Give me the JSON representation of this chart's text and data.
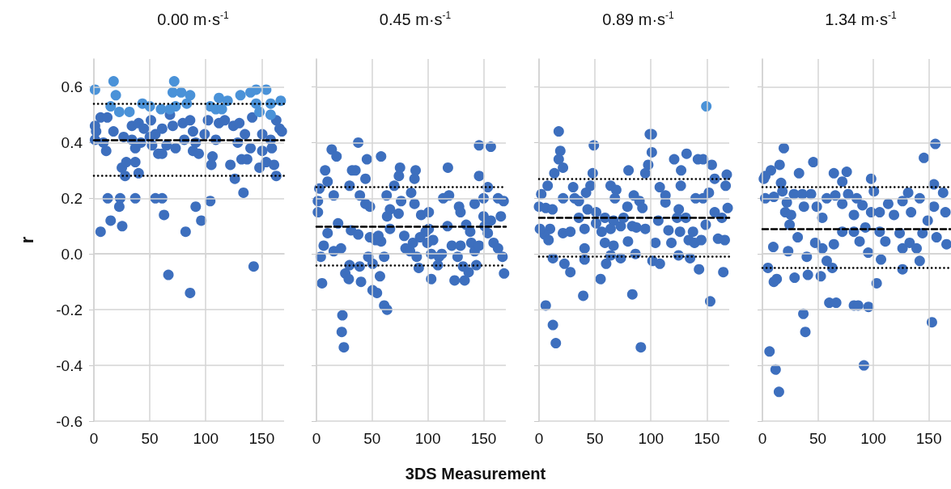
{
  "chart_data": [
    {
      "type": "scatter",
      "title": "0.00 m·s$^{-1}$",
      "ylabel": "r",
      "xlim": [
        0,
        170
      ],
      "xticks": [
        0,
        50,
        100,
        150
      ],
      "ylim": [
        -0.6,
        0.7
      ],
      "yticks": [
        -0.6,
        -0.4,
        -0.2,
        {
          "value": 0,
          "label": "0.0"
        },
        0.2,
        0.4,
        0.6
      ],
      "grid": true,
      "marker": "circle",
      "ref_lines": [
        {
          "axis": "y",
          "value": 0.41,
          "color": "#000000",
          "line_style": "dashed"
        },
        {
          "axis": "y",
          "value": 0.54,
          "color": "#000000",
          "line_style": "dotted"
        },
        {
          "axis": "y",
          "value": 0.28,
          "color": "#000000",
          "line_style": "dotted"
        }
      ],
      "series": [
        {
          "color": "#3d6fbe",
          "x": [
            1,
            2,
            1,
            6,
            12,
            17.5,
            8.5,
            11,
            26.6,
            25,
            27.9,
            29,
            34,
            34,
            37,
            37,
            40,
            40,
            44.7,
            42,
            50,
            51,
            52,
            55,
            57.6,
            61,
            61,
            65,
            68,
            70.5,
            73,
            79.5,
            80.8,
            86,
            88.6,
            88.6,
            91,
            93.7,
            99,
            102,
            106,
            105,
            109,
            111.8,
            117,
            124.7,
            130,
            128.6,
            122,
            126,
            135,
            132,
            137,
            140,
            141.5,
            150.5,
            150.5,
            148,
            154,
            161,
            159,
            163,
            163,
            166,
            168,
            158,
            12.4,
            6,
            15,
            23.5,
            22.7,
            25.3,
            37,
            55,
            61,
            62.7,
            82,
            91,
            96,
            104,
            133.7,
            66.6,
            86,
            142.8
          ],
          "values": [
            0.46,
            0.44,
            0.41,
            0.49,
            0.49,
            0.44,
            0.4,
            0.37,
            0.42,
            0.31,
            0.28,
            0.33,
            0.46,
            0.41,
            0.38,
            0.33,
            0.29,
            0.47,
            0.45,
            0.4,
            0.42,
            0.48,
            0.39,
            0.43,
            0.36,
            0.36,
            0.45,
            0.39,
            0.5,
            0.46,
            0.38,
            0.47,
            0.41,
            0.48,
            0.44,
            0.37,
            0.4,
            0.36,
            0.43,
            0.48,
            0.35,
            0.32,
            0.41,
            0.47,
            0.48,
            0.46,
            0.47,
            0.4,
            0.32,
            0.27,
            0.43,
            0.34,
            0.34,
            0.38,
            0.49,
            0.37,
            0.43,
            0.31,
            0.33,
            0.32,
            0.38,
            0.28,
            0.48,
            0.45,
            0.44,
            0.41,
            0.2,
            0.08,
            0.12,
            0.2,
            0.17,
            0.1,
            0.2,
            0.2,
            0.2,
            0.14,
            0.08,
            0.17,
            0.12,
            0.19,
            0.22,
            -0.075,
            -0.14,
            -0.045
          ]
        },
        {
          "color": "#4a92d8",
          "x": [
            1,
            17.6,
            19.6,
            15,
            22.7,
            31.8,
            43.4,
            50,
            60,
            68,
            71.8,
            70.5,
            78,
            86,
            83,
            73,
            109,
            114.4,
            111.8,
            119.5,
            131,
            140,
            145,
            154,
            145,
            148,
            158,
            158,
            167,
            104
          ],
          "values": [
            0.59,
            0.62,
            0.57,
            0.53,
            0.51,
            0.51,
            0.54,
            0.53,
            0.52,
            0.52,
            0.62,
            0.58,
            0.58,
            0.57,
            0.54,
            0.53,
            0.52,
            0.52,
            0.56,
            0.55,
            0.57,
            0.58,
            0.59,
            0.59,
            0.54,
            0.51,
            0.5,
            0.54,
            0.55,
            0.53
          ]
        }
      ]
    },
    {
      "type": "scatter",
      "title": "0.45 m·s$^{-1}$",
      "xlabel": "3DS Measurement",
      "xlim": [
        0,
        170
      ],
      "xticks": [
        0,
        50,
        100,
        150
      ],
      "ylim": [
        -0.6,
        0.7
      ],
      "yticks": [
        -0.6,
        -0.4,
        -0.2,
        0,
        0.2,
        0.4,
        0.6
      ],
      "grid": true,
      "marker": "circle",
      "tick_labels": "x",
      "ref_lines": [
        {
          "axis": "y",
          "value": 0.1,
          "color": "#000000",
          "line_style": "dashed"
        },
        {
          "axis": "y",
          "value": 0.24,
          "color": "#000000",
          "line_style": "dotted"
        },
        {
          "axis": "y",
          "value": -0.04,
          "color": "#000000",
          "line_style": "dotted"
        }
      ],
      "series": [
        {
          "color": "#3d6fbe",
          "x": [
            37.5,
            13.7,
            18,
            45.3,
            58,
            146,
            156.5,
            118,
            7.8,
            32,
            35,
            44,
            75,
            74,
            89,
            88,
            146,
            2.6,
            10,
            15.5,
            29.7,
            39,
            44,
            48,
            63,
            69.8,
            76,
            85,
            88,
            113.8,
            119,
            128,
            129.3,
            142,
            153.8,
            150,
            163,
            168,
            1.3,
            1.3,
            19.4,
            10,
            6.5,
            3.9,
            5,
            15.5,
            22,
            31,
            37.5,
            29.7,
            25.9,
            29,
            38.8,
            40,
            46.5,
            50.4,
            48,
            53,
            58,
            55.6,
            60.8,
            57,
            50.4,
            54.3,
            60.8,
            63.4,
            23.3,
            22.7,
            24.6,
            66,
            63.4,
            66,
            73.7,
            78.8,
            80,
            84,
            90,
            91.8,
            86.6,
            93,
            98,
            94,
            100.8,
            99.5,
            103,
            103,
            110,
            112.5,
            109,
            104.7,
            117.6,
            121.5,
            124,
            126.7,
            129.3,
            133,
            131.6,
            136.6,
            138,
            139,
            142,
            143.5,
            146,
            150,
            153.8,
            156.5,
            159,
            163,
            165.5,
            167,
            168.4,
            134.4,
            151,
            100.8
          ],
          "values": [
            0.4,
            0.375,
            0.35,
            0.34,
            0.35,
            0.39,
            0.385,
            0.31,
            0.3,
            0.3,
            0.3,
            0.27,
            0.31,
            0.28,
            0.3,
            0.27,
            0.28,
            0.235,
            0.26,
            0.21,
            0.245,
            0.21,
            0.18,
            0.17,
            0.21,
            0.245,
            0.19,
            0.22,
            0.18,
            0.2,
            0.21,
            0.17,
            0.15,
            0.18,
            0.24,
            0.2,
            0.2,
            0.19,
            0.19,
            0.15,
            0.11,
            0.075,
            0.03,
            -0.01,
            -0.105,
            0.01,
            0.02,
            0.085,
            0.07,
            -0.04,
            -0.07,
            -0.09,
            -0.045,
            -0.1,
            -0.01,
            -0.035,
            0.06,
            0.05,
            0.045,
            0.065,
            -0.01,
            -0.08,
            -0.13,
            -0.14,
            -0.185,
            -0.2,
            -0.22,
            -0.28,
            -0.335,
            0.09,
            0.135,
            0.16,
            0.145,
            0.065,
            0.02,
            0.01,
            -0.01,
            -0.05,
            0.04,
            0.06,
            0.08,
            0.14,
            0.15,
            0.04,
            0,
            -0.09,
            -0.01,
            0,
            -0.04,
            0.05,
            0.1,
            0.03,
            -0.095,
            -0.01,
            0.03,
            -0.095,
            -0.045,
            -0.065,
            0.08,
            0.04,
            0.01,
            -0.04,
            0.03,
            0.135,
            0.075,
            0.12,
            0.04,
            0.02,
            0.135,
            -0.01,
            -0.07,
            0.105,
            0.1,
            0.09
          ]
        }
      ]
    },
    {
      "type": "scatter",
      "title": "0.89 m·s$^{-1}$",
      "xlim": [
        0,
        170
      ],
      "xticks": [
        0,
        50,
        100,
        150
      ],
      "ylim": [
        -0.6,
        0.7
      ],
      "yticks": [
        -0.6,
        -0.4,
        -0.2,
        0,
        0.2,
        0.4,
        0.6
      ],
      "grid": true,
      "marker": "circle",
      "tick_labels": "x",
      "ref_lines": [
        {
          "axis": "y",
          "value": 0.13,
          "color": "#000000",
          "line_style": "dashed"
        },
        {
          "axis": "y",
          "value": 0.27,
          "color": "#000000",
          "line_style": "dotted"
        },
        {
          "axis": "y",
          "value": -0.01,
          "color": "#000000",
          "line_style": "dotted"
        }
      ],
      "series": [
        {
          "color": "#3d6fbe",
          "x": [
            17.6,
            99,
            100.8,
            49,
            19,
            100.8,
            17.6,
            21.4,
            13.7,
            120.8,
            131.9,
            142,
            146.7,
            154.4,
            127,
            80,
            97.6,
            95,
            48,
            46,
            157,
            167.8,
            166.8,
            7.7,
            2,
            0,
            6,
            12,
            21.5,
            30.5,
            31.8,
            35.6,
            42,
            64,
            69,
            67.8,
            79,
            84.7,
            89.8,
            92.4,
            107.9,
            113,
            113,
            124.9,
            126.7,
            140,
            146.6,
            151.8,
            157,
            168.6,
            163.4,
            9.8,
            5,
            0.8,
            8.5,
            21.4,
            28,
            35.6,
            40.7,
            43.4,
            51,
            51,
            58.9,
            56,
            58.9,
            66.6,
            64,
            66.6,
            73,
            75.6,
            79.5,
            83.3,
            87,
            95,
            104,
            106.6,
            115.7,
            118.3,
            123.4,
            126,
            131.2,
            133.8,
            137.6,
            139,
            149,
            145,
            160,
            166,
            12.4,
            22.7,
            28,
            40.7,
            40.7,
            55,
            60,
            64,
            73,
            86.2,
            101.4,
            108,
            124.7,
            135,
            143,
            164.7,
            39.5,
            83.4,
            6,
            12.4,
            15,
            91,
            153
          ],
          "values": [
            0.44,
            0.43,
            0.43,
            0.39,
            0.37,
            0.365,
            0.34,
            0.31,
            0.29,
            0.34,
            0.36,
            0.34,
            0.34,
            0.32,
            0.3,
            0.3,
            0.32,
            0.29,
            0.29,
            0.245,
            0.27,
            0.285,
            0.245,
            0.245,
            0.215,
            0.17,
            0.165,
            0.16,
            0.2,
            0.24,
            0.2,
            0.19,
            0.22,
            0.245,
            0.23,
            0.2,
            0.17,
            0.21,
            0.19,
            0.165,
            0.24,
            0.21,
            0.185,
            0.16,
            0.245,
            0.2,
            0.2,
            0.22,
            0.15,
            0.165,
            0.13,
            0.09,
            0.07,
            0.09,
            0.05,
            0.075,
            0.08,
            0.13,
            0.09,
            0.16,
            0.15,
            0.11,
            0.13,
            0.08,
            0.04,
            0.12,
            0.09,
            0.03,
            0.1,
            0.13,
            0.045,
            0.1,
            0.095,
            0.09,
            0.04,
            0.12,
            0.085,
            0.04,
            0.13,
            0.08,
            0.13,
            0.05,
            0.08,
            0.04,
            0.105,
            0.05,
            0.055,
            0.05,
            -0.015,
            -0.035,
            -0.065,
            -0.02,
            0.02,
            -0.09,
            -0.035,
            -0.005,
            -0.015,
            0,
            -0.025,
            -0.035,
            -0.005,
            -0.015,
            -0.055,
            -0.065,
            -0.15,
            -0.145,
            -0.185,
            -0.255,
            -0.32,
            -0.335,
            -0.17
          ]
        },
        {
          "color": "#4a92d8",
          "x": [
            149.5
          ],
          "values": [
            0.53
          ]
        }
      ]
    },
    {
      "type": "scatter",
      "title": "1.34 m·s$^{-1}$",
      "xlim": [
        0,
        170
      ],
      "xticks": [
        0,
        50,
        100,
        150
      ],
      "ylim": [
        -0.6,
        0.7
      ],
      "yticks": [
        -0.6,
        -0.4,
        -0.2,
        0,
        0.2,
        0.4,
        0.6
      ],
      "grid": true,
      "marker": "circle",
      "tick_labels": "x",
      "ref_lines": [
        {
          "axis": "y",
          "value": 0.09,
          "color": "#000000",
          "line_style": "dashed"
        },
        {
          "axis": "y",
          "value": 0.24,
          "color": "#000000",
          "line_style": "dotted"
        },
        {
          "axis": "y",
          "value": -0.05,
          "color": "#000000",
          "line_style": "dotted"
        }
      ],
      "series": [
        {
          "color": "#3d6fbe",
          "x": [
            155.9,
            19.3,
            145.6,
            45.9,
            15.5,
            7.7,
            2.6,
            1.3,
            33,
            64.4,
            76,
            72,
            98,
            100.5,
            16.8,
            154.6,
            162.9,
            2.6,
            10.3,
            18,
            28.4,
            36,
            43.8,
            22,
            20.6,
            25.8,
            24.5,
            37.4,
            49,
            58,
            65.7,
            72,
            77.3,
            82.5,
            85,
            90.2,
            98,
            105.7,
            113.4,
            118.6,
            126.3,
            131.4,
            141.8,
            134,
            154.6,
            165,
            54,
            72,
            82.5,
            92.8,
            105.7,
            110.8,
            123.7,
            126.3,
            132.7,
            139,
            141.8,
            144.3,
            149,
            157,
            166,
            87.6,
            95.4,
            106.9,
            31.8,
            47.6,
            54,
            64.4,
            40,
            23.2,
            9.8,
            58,
            63,
            5,
            10.3,
            12.9,
            29,
            41,
            52.6,
            126.3,
            103,
            60.3,
            66.5,
            82.5,
            86.3,
            95.6,
            36.9,
            38.7,
            152.8,
            6.4,
            11.9,
            14.9,
            91.5
          ],
          "values": [
            0.395,
            0.38,
            0.345,
            0.33,
            0.32,
            0.3,
            0.28,
            0.27,
            0.29,
            0.29,
            0.295,
            0.26,
            0.27,
            0.225,
            0.255,
            0.25,
            0.22,
            0.2,
            0.205,
            0.225,
            0.215,
            0.215,
            0.215,
            0.185,
            0.15,
            0.14,
            0.105,
            0.17,
            0.17,
            0.2,
            0.21,
            0.18,
            0.215,
            0.14,
            0.2,
            0.175,
            0.15,
            0.15,
            0.18,
            0.14,
            0.19,
            0.22,
            0.2,
            0.15,
            0.17,
            0.15,
            0.13,
            0.08,
            0.08,
            0.095,
            0.08,
            0.045,
            0.075,
            0.02,
            0.04,
            0.02,
            -0.025,
            0.075,
            0.12,
            0.06,
            0.035,
            0.045,
            0.005,
            -0.02,
            0.06,
            0.04,
            0.02,
            0.035,
            -0.01,
            0.01,
            0.025,
            -0.025,
            -0.05,
            -0.05,
            -0.1,
            -0.09,
            -0.085,
            -0.075,
            -0.08,
            -0.055,
            -0.105,
            -0.175,
            -0.175,
            -0.185,
            -0.185,
            -0.19,
            -0.215,
            -0.28,
            -0.245,
            -0.35,
            -0.415,
            -0.495,
            -0.4
          ]
        }
      ]
    }
  ]
}
